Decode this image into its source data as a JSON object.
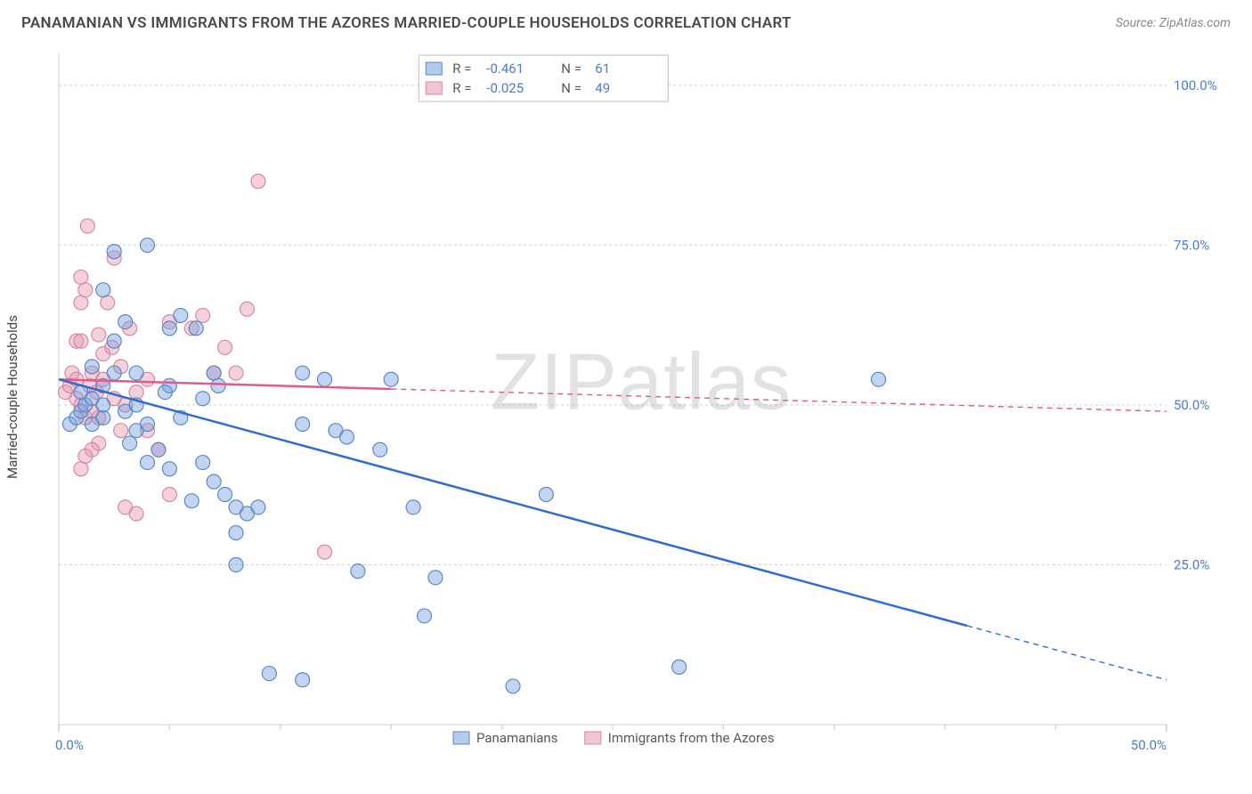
{
  "title": "PANAMANIAN VS IMMIGRANTS FROM THE AZORES MARRIED-COUPLE HOUSEHOLDS CORRELATION CHART",
  "source": "Source: ZipAtlas.com",
  "watermark_bold": "ZIP",
  "watermark_thin": "atlas",
  "y_axis_label": "Married-couple Households",
  "chart": {
    "type": "scatter",
    "background_color": "#ffffff",
    "grid_color": "#d0d0d0",
    "axis_color": "#d0d0d0",
    "tick_label_color": "#4a7bd0",
    "xlim": [
      0,
      50
    ],
    "ylim": [
      0,
      105
    ],
    "y_ticks": [
      25.0,
      50.0,
      75.0,
      100.0
    ],
    "y_tick_labels": [
      "25.0%",
      "50.0%",
      "75.0%",
      "100.0%"
    ],
    "x_ticks": [
      0.0,
      50.0
    ],
    "x_tick_labels": [
      "0.0%",
      "50.0%"
    ],
    "x_minor_ticks": [
      5,
      10,
      15,
      20,
      25,
      30,
      35,
      40,
      45
    ],
    "series_a": {
      "name": "Panamanians",
      "marker_color_fill": "rgba(120,160,220,0.45)",
      "marker_color_stroke": "#5a8acb",
      "marker_radius": 8,
      "line_color": "#2e6cd1",
      "line_width": 2.5,
      "R": "-0.461",
      "N": "61",
      "trend": {
        "x1": 0,
        "y1": 54,
        "x2": 50,
        "y2": 7,
        "solid_until_x": 41
      },
      "points": [
        [
          0.5,
          47
        ],
        [
          0.8,
          48
        ],
        [
          1,
          49
        ],
        [
          1.2,
          50
        ],
        [
          1,
          52
        ],
        [
          1.5,
          51
        ],
        [
          1.5,
          47
        ],
        [
          2,
          48
        ],
        [
          2,
          50
        ],
        [
          2,
          53
        ],
        [
          1.5,
          56
        ],
        [
          2.5,
          55
        ],
        [
          2.5,
          60
        ],
        [
          2,
          68
        ],
        [
          2.5,
          74
        ],
        [
          4,
          75
        ],
        [
          3,
          63
        ],
        [
          3.5,
          55
        ],
        [
          3,
          49
        ],
        [
          3.5,
          46
        ],
        [
          3.5,
          50
        ],
        [
          4,
          47
        ],
        [
          4,
          41
        ],
        [
          4.5,
          43
        ],
        [
          5,
          62
        ],
        [
          5.5,
          64
        ],
        [
          5,
          53
        ],
        [
          5.5,
          48
        ],
        [
          5,
          40
        ],
        [
          6,
          35
        ],
        [
          6.5,
          41
        ],
        [
          6.5,
          51
        ],
        [
          7,
          55
        ],
        [
          7,
          38
        ],
        [
          7.5,
          36
        ],
        [
          8,
          34
        ],
        [
          8,
          30
        ],
        [
          8.5,
          33
        ],
        [
          9,
          34
        ],
        [
          8,
          25
        ],
        [
          9.5,
          8
        ],
        [
          11,
          7
        ],
        [
          11,
          47
        ],
        [
          11,
          55
        ],
        [
          12,
          54
        ],
        [
          12.5,
          46
        ],
        [
          13,
          45
        ],
        [
          13.5,
          24
        ],
        [
          14.5,
          43
        ],
        [
          15,
          54
        ],
        [
          16,
          34
        ],
        [
          16.5,
          17
        ],
        [
          17,
          23
        ],
        [
          20.5,
          6
        ],
        [
          22,
          36
        ],
        [
          28,
          9
        ],
        [
          37,
          54
        ],
        [
          3.2,
          44
        ],
        [
          4.8,
          52
        ],
        [
          6.2,
          62
        ],
        [
          7.2,
          53
        ]
      ]
    },
    "series_b": {
      "name": "Immigrants from the Azores",
      "marker_color_fill": "rgba(230,150,175,0.45)",
      "marker_color_stroke": "#d68aa2",
      "marker_radius": 8,
      "line_color": "#e05a8a",
      "line_width": 2.5,
      "R": "-0.025",
      "N": "49",
      "trend": {
        "x1": 0,
        "y1": 54,
        "x2": 50,
        "y2": 49,
        "solid_until_x": 15
      },
      "points": [
        [
          0.3,
          52
        ],
        [
          0.5,
          53
        ],
        [
          0.6,
          55
        ],
        [
          0.8,
          54
        ],
        [
          0.8,
          60
        ],
        [
          1,
          60
        ],
        [
          1,
          66
        ],
        [
          1.2,
          68
        ],
        [
          1,
          70
        ],
        [
          1.3,
          78
        ],
        [
          0.8,
          51
        ],
        [
          1,
          50
        ],
        [
          1.2,
          48
        ],
        [
          1.5,
          49
        ],
        [
          1.4,
          53
        ],
        [
          1.5,
          55
        ],
        [
          1.7,
          52
        ],
        [
          1.8,
          48
        ],
        [
          1.8,
          44
        ],
        [
          1.5,
          43
        ],
        [
          1.2,
          42
        ],
        [
          1,
          40
        ],
        [
          2,
          54
        ],
        [
          2,
          58
        ],
        [
          2.2,
          66
        ],
        [
          2.5,
          73
        ],
        [
          2.8,
          56
        ],
        [
          2.5,
          51
        ],
        [
          2.8,
          46
        ],
        [
          3,
          50
        ],
        [
          3,
          34
        ],
        [
          3.5,
          33
        ],
        [
          3.5,
          52
        ],
        [
          4,
          46
        ],
        [
          4,
          54
        ],
        [
          4.5,
          43
        ],
        [
          5,
          36
        ],
        [
          5,
          63
        ],
        [
          6,
          62
        ],
        [
          6.5,
          64
        ],
        [
          7,
          55
        ],
        [
          7.5,
          59
        ],
        [
          8,
          55
        ],
        [
          8.5,
          65
        ],
        [
          9,
          85
        ],
        [
          12,
          27
        ],
        [
          3.2,
          62
        ],
        [
          1.8,
          61
        ],
        [
          2.4,
          59
        ]
      ]
    },
    "legend_top": {
      "box_stroke": "#c0c0c0",
      "labels_color": "#5a5a5a",
      "value_color": "#4a7bd0",
      "rows": [
        {
          "swatch_fill": "rgba(120,160,220,0.55)",
          "swatch_stroke": "#5a8acb",
          "R": "-0.461",
          "N": "61"
        },
        {
          "swatch_fill": "rgba(230,150,175,0.55)",
          "swatch_stroke": "#d68aa2",
          "R": "-0.025",
          "N": "49"
        }
      ]
    },
    "legend_bottom": {
      "items": [
        {
          "swatch_fill": "rgba(120,160,220,0.55)",
          "swatch_stroke": "#5a8acb",
          "label": "Panamanians"
        },
        {
          "swatch_fill": "rgba(230,150,175,0.55)",
          "swatch_stroke": "#d68aa2",
          "label": "Immigrants from the Azores"
        }
      ]
    }
  }
}
